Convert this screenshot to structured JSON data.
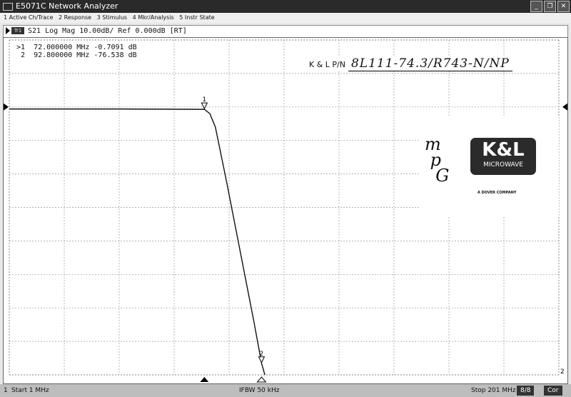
{
  "window": {
    "title": "E5071C Network Analyzer",
    "icon": "app-icon",
    "controls": [
      "minimize",
      "restore",
      "close"
    ]
  },
  "menu": [
    "1 Active Ch/Trace",
    "2 Response",
    "3 Stimulus",
    "4 Mkr/Analysis",
    "5 Instr State"
  ],
  "channel": {
    "trace_label": "Tr1",
    "header": "S21 Log Mag 10.00dB/ Ref 0.000dB [RT]"
  },
  "markers": [
    {
      "label": ">1",
      "freq": "72.000000 MHz",
      "value": "-0.7091 dB",
      "num": "1"
    },
    {
      "label": " 2",
      "freq": "92.800000 MHz",
      "value": "-76.538 dB",
      "num": "2"
    }
  ],
  "annotation": {
    "label": "K & L P/N",
    "part_number": "8L111-74.3/R743-N/NP"
  },
  "logo": {
    "mpg": "mpG",
    "brand": "K&L",
    "sub": "MICROWAVE",
    "company": "A DOVER COMPANY"
  },
  "trace": {
    "start_mhz": 1,
    "stop_mhz": 201,
    "ref_db": 0,
    "scale_db_per_div": 10,
    "top_db": 20,
    "bottom_db": -80,
    "points": [
      [
        1,
        -0.6
      ],
      [
        40,
        -0.6
      ],
      [
        72,
        -0.71
      ],
      [
        74,
        -2
      ],
      [
        76,
        -6
      ],
      [
        80,
        -22
      ],
      [
        85,
        -43
      ],
      [
        90,
        -64
      ],
      [
        92.8,
        -76.5
      ],
      [
        94,
        -80
      ]
    ],
    "color": "#111111"
  },
  "status": {
    "channel": "1",
    "start": "Start 1 MHz",
    "ifbw": "IFBW 50 kHz",
    "stop": "Stop 201 MHz",
    "sweep": "8/8",
    "cor": "Cor"
  }
}
